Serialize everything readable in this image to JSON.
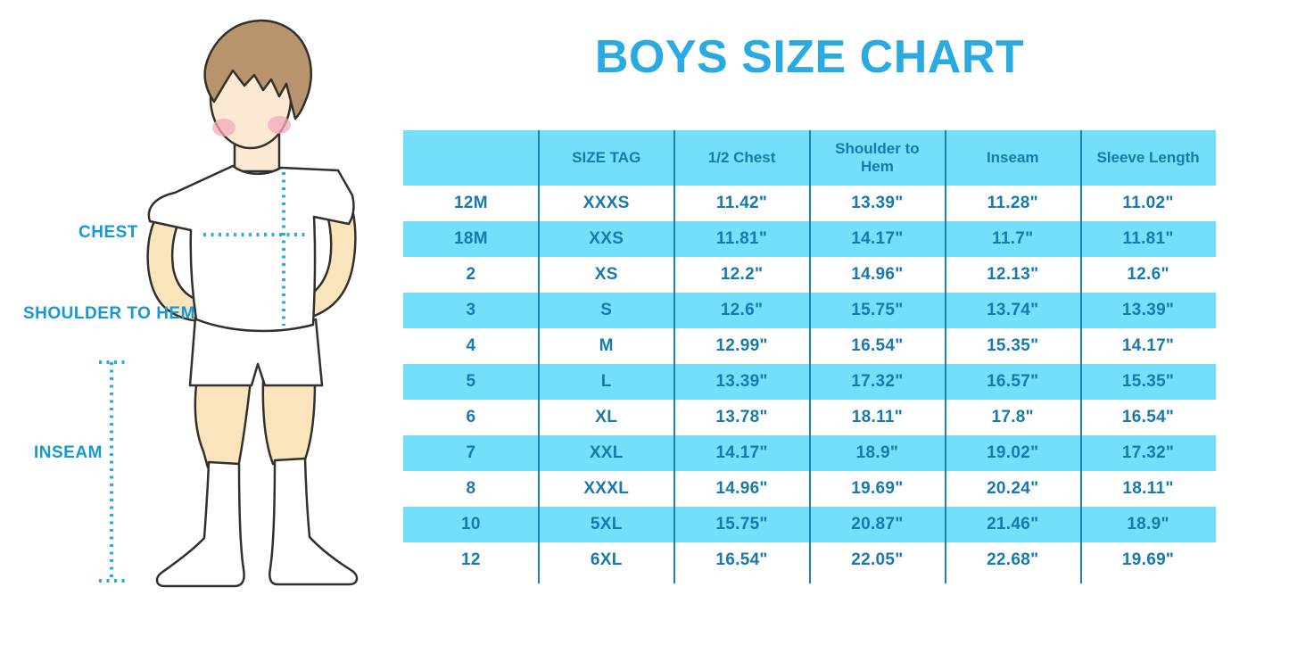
{
  "title": "BOYS SIZE CHART",
  "figure_labels": {
    "chest": "CHEST",
    "shoulder_to_hem": "SHOULDER TO HEM",
    "inseam": "INSEAM"
  },
  "chart_data": {
    "type": "table",
    "title": "BOYS SIZE CHART",
    "columns": [
      "",
      "SIZE TAG",
      "1/2 Chest",
      "Shoulder to Hem",
      "Inseam",
      "Sleeve Length"
    ],
    "rows": [
      [
        "12M",
        "XXXS",
        "11.42\"",
        "13.39\"",
        "11.28\"",
        "11.02\""
      ],
      [
        "18M",
        "XXS",
        "11.81\"",
        "14.17\"",
        "11.7\"",
        "11.81\""
      ],
      [
        "2",
        "XS",
        "12.2\"",
        "14.96\"",
        "12.13\"",
        "12.6\""
      ],
      [
        "3",
        "S",
        "12.6\"",
        "15.75\"",
        "13.74\"",
        "13.39\""
      ],
      [
        "4",
        "M",
        "12.99\"",
        "16.54\"",
        "15.35\"",
        "14.17\""
      ],
      [
        "5",
        "L",
        "13.39\"",
        "17.32\"",
        "16.57\"",
        "15.35\""
      ],
      [
        "6",
        "XL",
        "13.78\"",
        "18.11\"",
        "17.8\"",
        "16.54\""
      ],
      [
        "7",
        "XXL",
        "14.17\"",
        "18.9\"",
        "19.02\"",
        "17.32\""
      ],
      [
        "8",
        "XXXL",
        "14.96\"",
        "19.69\"",
        "20.24\"",
        "18.11\""
      ],
      [
        "10",
        "5XL",
        "15.75\"",
        "20.87\"",
        "21.46\"",
        "18.9\""
      ],
      [
        "12",
        "6XL",
        "16.54\"",
        "22.05\"",
        "22.68\"",
        "19.69\""
      ]
    ],
    "row_striping": [
      "white",
      "cyan"
    ],
    "grid": "vertical-column-lines-only",
    "legend_position": "none"
  },
  "colors": {
    "title_blue": "#29ABE2",
    "label_blue": "#1598D6",
    "table_text_blue": "#1779AE",
    "row_cyan": "#74DFFA",
    "row_white": "#FFFFFF",
    "column_line_blue": "#1E82BA",
    "dotted_measure_blue": "#29ABE2",
    "hair_brown": "#B8946C",
    "skin_face": "#FBE9D4",
    "skin_limbs": "#FAE4BC",
    "cheek_pink": "#F2A9B9",
    "outline_dark": "#33302C"
  }
}
